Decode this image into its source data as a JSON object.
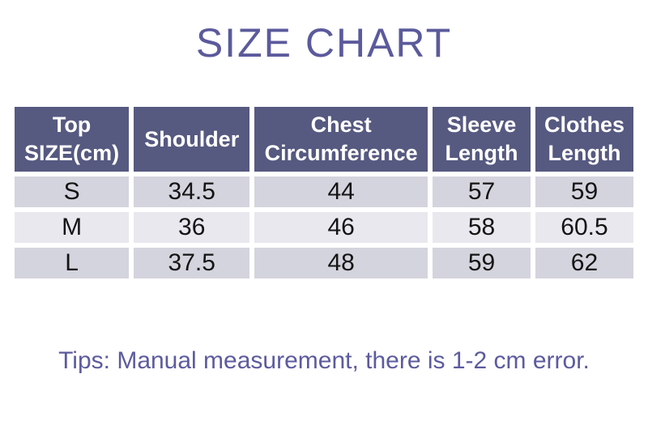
{
  "page": {
    "title": "SIZE CHART",
    "tips": "Tips: Manual measurement, there is 1-2 cm error."
  },
  "size_table": {
    "headers": [
      "Top SIZE(cm)",
      "Shoulder",
      "Chest Circumference",
      "Sleeve Length",
      "Clothes Length"
    ],
    "rows": [
      [
        "S",
        "34.5",
        "44",
        "57",
        "59"
      ],
      [
        "M",
        "36",
        "46",
        "58",
        "60.5"
      ],
      [
        "L",
        "37.5",
        "48",
        "59",
        "62"
      ]
    ]
  },
  "chart_data": {
    "type": "table",
    "title": "SIZE CHART",
    "columns": [
      "Top SIZE(cm)",
      "Shoulder",
      "Chest Circumference",
      "Sleeve Length",
      "Clothes Length"
    ],
    "rows": [
      {
        "size": "S",
        "shoulder": 34.5,
        "chest_circumference": 44,
        "sleeve_length": 57,
        "clothes_length": 59
      },
      {
        "size": "M",
        "shoulder": 36,
        "chest_circumference": 46,
        "sleeve_length": 58,
        "clothes_length": 60.5
      },
      {
        "size": "L",
        "shoulder": 37.5,
        "chest_circumference": 48,
        "sleeve_length": 59,
        "clothes_length": 62
      }
    ],
    "note": "Tips: Manual measurement, there is 1-2 cm error.",
    "layout": {
      "header_alignment": "center",
      "cell_alignment": "center",
      "grid": "white gaps between cells"
    }
  },
  "colors": {
    "title_text": "#5b5a9c",
    "header_background": "#565980",
    "header_text": "#ffffff",
    "row_odd_background": "#d4d4de",
    "row_even_background": "#e9e8ee",
    "cell_text": "#141414",
    "tips_text": "#5c5b9e",
    "page_background": "#ffffff"
  }
}
